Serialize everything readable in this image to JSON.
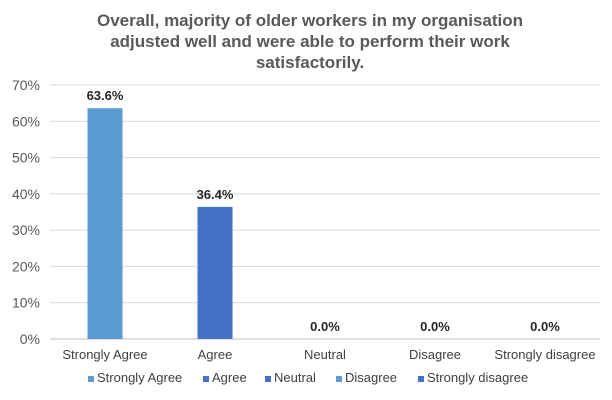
{
  "chart_data": {
    "type": "bar",
    "title": "Overall, majority of older workers in my organisation adjusted well and were able to perform their work satisfactorily.",
    "categories": [
      "Strongly Agree",
      "Agree",
      "Neutral",
      "Disagree",
      "Strongly disagree"
    ],
    "values": [
      63.6,
      36.4,
      0.0,
      0.0,
      0.0
    ],
    "data_labels": [
      "63.6%",
      "36.4%",
      "0.0%",
      "0.0%",
      "0.0%"
    ],
    "colors": [
      "#5B9BD5",
      "#4472C4",
      "#4472C4",
      "#5B9BD5",
      "#4472C4"
    ],
    "ylim": [
      0,
      70
    ],
    "yticks": [
      0,
      10,
      20,
      30,
      40,
      50,
      60,
      70
    ],
    "ytick_labels": [
      "0%",
      "10%",
      "20%",
      "30%",
      "40%",
      "50%",
      "60%",
      "70%"
    ],
    "grid": true,
    "legend_position": "bottom",
    "legend": [
      "Strongly Agree",
      "Agree",
      "Neutral",
      "Disagree",
      "Strongly disagree"
    ],
    "gridline_color": "#D9D9D9"
  }
}
